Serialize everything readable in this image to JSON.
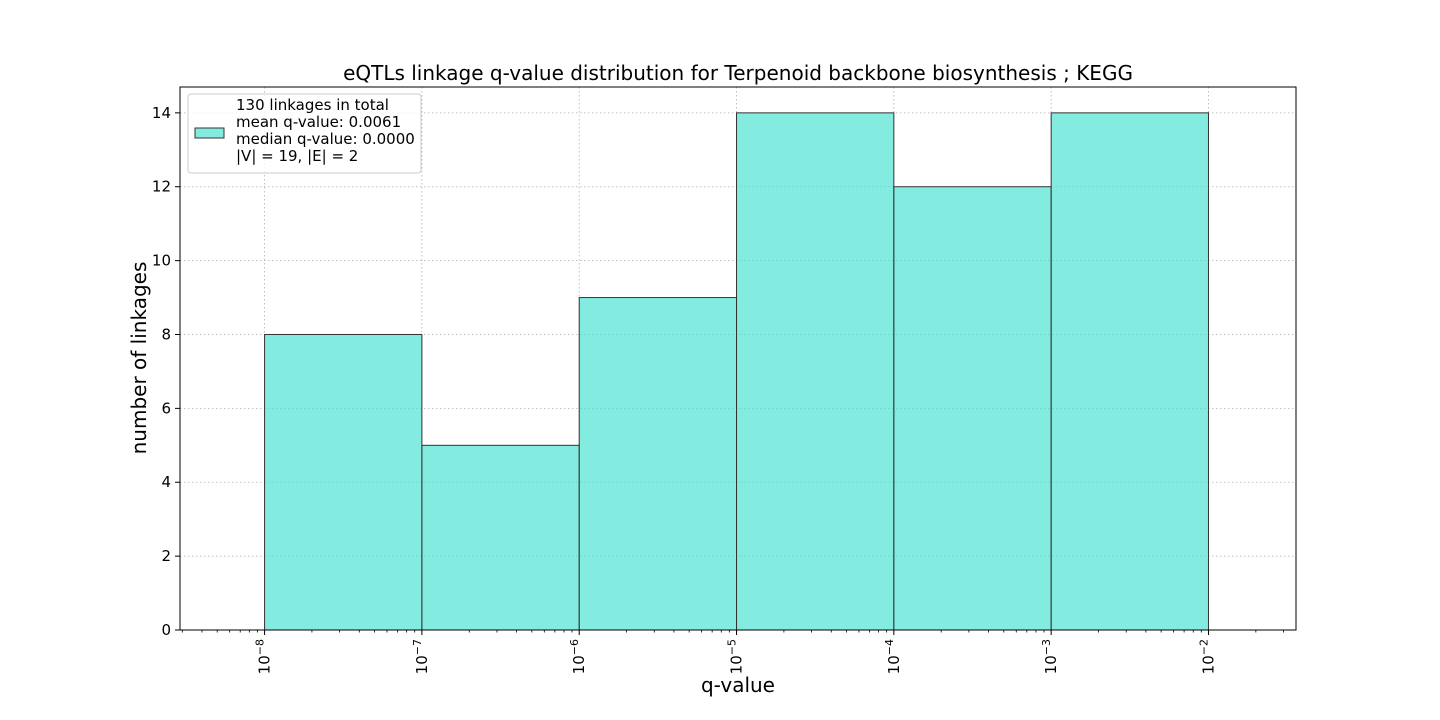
{
  "chart_data": {
    "type": "bar",
    "title": "eQTLs linkage q-value distribution for Terpenoid backbone biosynthesis ; KEGG",
    "xlabel": "q-value",
    "ylabel": "number of linkages",
    "x_scale": "log",
    "bin_edges": [
      1e-08,
      1e-07,
      1e-06,
      1e-05,
      0.0001,
      0.001,
      0.01
    ],
    "values": [
      8,
      5,
      9,
      14,
      12,
      14
    ],
    "xlim": [
      2.9e-09,
      0.036
    ],
    "ylim": [
      0,
      14.7
    ],
    "x_ticks": [
      {
        "value": 1e-08,
        "base": "10",
        "exp": "−8"
      },
      {
        "value": 1e-07,
        "base": "10",
        "exp": "−7"
      },
      {
        "value": 1e-06,
        "base": "10",
        "exp": "−6"
      },
      {
        "value": 1e-05,
        "base": "10",
        "exp": "−5"
      },
      {
        "value": 0.0001,
        "base": "10",
        "exp": "−4"
      },
      {
        "value": 0.001,
        "base": "10",
        "exp": "−3"
      },
      {
        "value": 0.01,
        "base": "10",
        "exp": "−2"
      }
    ],
    "y_ticks": [
      0,
      2,
      4,
      6,
      8,
      10,
      12,
      14
    ],
    "grid": true,
    "bar_color": "#40E0D0",
    "bar_alpha": 0.65,
    "bar_edge_color": "#333333",
    "legend": {
      "placement": "upper-left",
      "lines": [
        "130 linkages in total",
        "mean q-value: 0.0061",
        "median q-value: 0.0000",
        "|V| = 19, |E| = 2"
      ]
    }
  }
}
